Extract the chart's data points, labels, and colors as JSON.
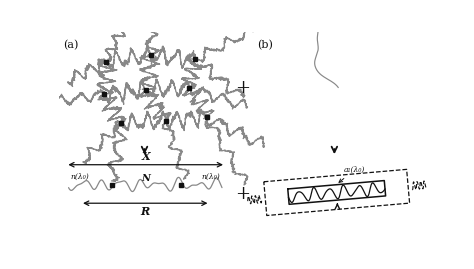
{
  "fig_width": 4.74,
  "fig_height": 2.69,
  "dpi": 100,
  "bg_color": "#ffffff",
  "line_color": "#888888",
  "dark_color": "#111111",
  "label_a": "(a)",
  "label_b": "(b)",
  "plus_sign": "+",
  "label_X": "X",
  "label_R": "R",
  "label_n_left": "n(λ₀)",
  "label_n_right": "n(λ₀)",
  "label_N": "N",
  "label_a_lambda": "a₁(λ₀)"
}
